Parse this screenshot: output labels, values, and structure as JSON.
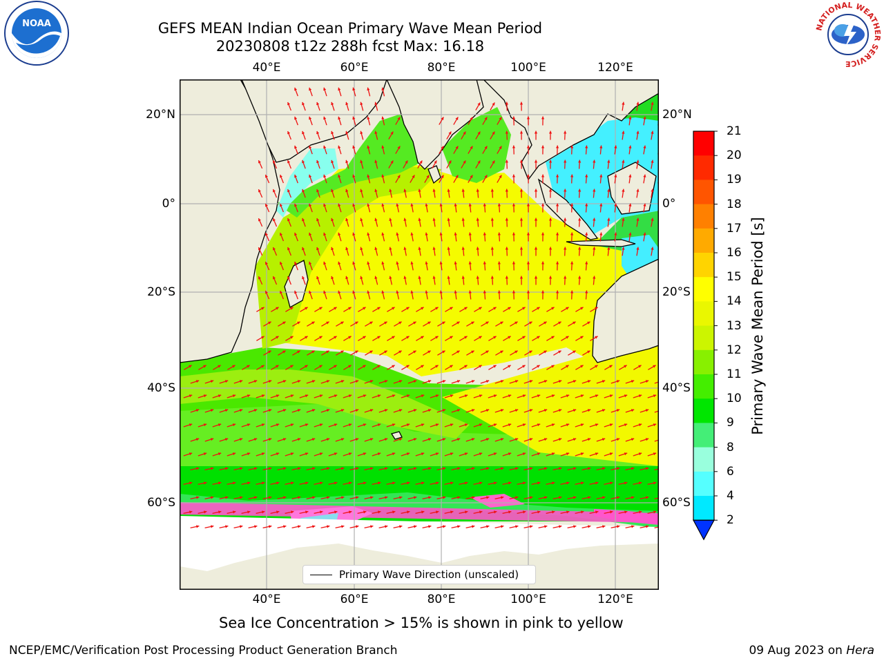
{
  "header": {
    "title_line1": "GEFS MEAN Indian Ocean Primary Wave Mean Period",
    "title_line2": "20230808 t12z 288h fcst   Max: 16.18"
  },
  "map": {
    "region": "Indian Ocean",
    "lon_labels": [
      "40°E",
      "60°E",
      "80°E",
      "100°E",
      "120°E"
    ],
    "lat_labels": [
      "20°N",
      "0°",
      "20°S",
      "40°S",
      "60°S"
    ],
    "land_color": "#eeeddc",
    "grid": true,
    "legend_label": "Primary Wave Direction (unscaled)",
    "arrow_color": "#ee1111"
  },
  "colorbar": {
    "title": "Primary Wave Mean Period [s]",
    "ticks": [
      "21",
      "20",
      "19",
      "18",
      "17",
      "16",
      "15",
      "14",
      "13",
      "12",
      "11",
      "10",
      "9",
      "8",
      "6",
      "4",
      "2"
    ],
    "colors": [
      "#ff0000",
      "#ff2a00",
      "#ff5500",
      "#ff8000",
      "#ffaa00",
      "#ffd400",
      "#ffff00",
      "#eaf700",
      "#ccf500",
      "#88f000",
      "#44ee00",
      "#00e600",
      "#44ee77",
      "#99ffdd",
      "#55ffff",
      "#00e9ff",
      "#00aaff",
      "#0033ff"
    ]
  },
  "caption": "Sea Ice Concentration > 15% is shown in pink to yellow",
  "footer": {
    "left": "NCEP/EMC/Verification Post Processing Product Generation Branch",
    "date": "09 Aug 2023 on ",
    "host": "Hera"
  },
  "logos": {
    "left": "NOAA",
    "right_ring_text": "NATIONAL WEATHER SERVICE"
  }
}
